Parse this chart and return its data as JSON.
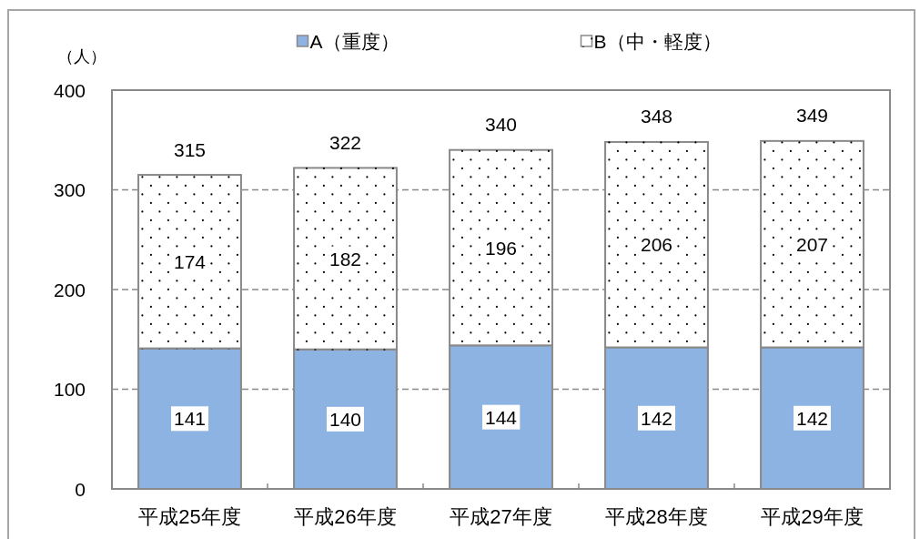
{
  "chart_data": {
    "type": "bar",
    "stacked": true,
    "ylabel": "（人）",
    "categories": [
      "平成25年度",
      "平成26年度",
      "平成27年度",
      "平成28年度",
      "平成29年度"
    ],
    "series": [
      {
        "name": "A（重度）",
        "color": "#8db3e2",
        "values": [
          141,
          140,
          144,
          142,
          142
        ]
      },
      {
        "name": "B（中・軽度）",
        "color": "#ffffff",
        "values": [
          174,
          182,
          196,
          206,
          207
        ]
      }
    ],
    "ylim": [
      0,
      400
    ],
    "yticks": [
      0,
      100,
      200,
      300,
      400
    ],
    "grid": "y",
    "legend": "top",
    "data_labels": true,
    "totals": [
      "315",
      "322",
      "340",
      "348",
      "349"
    ]
  }
}
